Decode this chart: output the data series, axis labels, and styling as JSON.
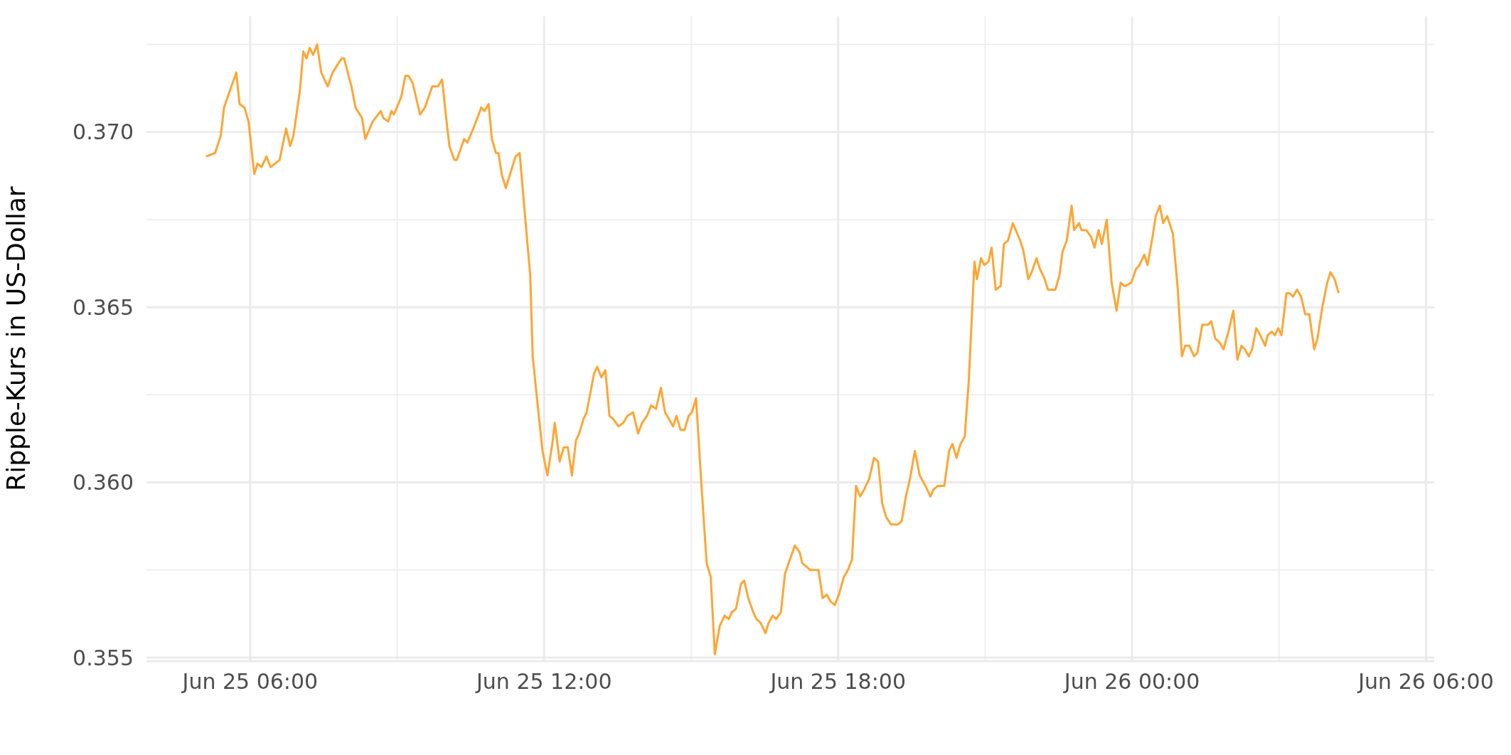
{
  "chart_data": {
    "type": "line",
    "ylabel": "Ripple-Kurs in US-Dollar",
    "x": [
      "--06-25T05:06",
      "--06-25T05:17",
      "--06-25T05:24",
      "--06-25T05:28",
      "--06-25T05:37",
      "--06-25T05:43",
      "--06-25T05:47",
      "--06-25T05:53",
      "--06-25T05:58",
      "--06-25T06:05",
      "--06-25T06:09",
      "--06-25T06:14",
      "--06-25T06:20",
      "--06-25T06:25",
      "--06-25T06:36",
      "--06-25T06:44",
      "--06-25T06:49",
      "--06-25T06:53",
      "--06-25T07:01",
      "--06-25T07:05",
      "--06-25T07:09",
      "--06-25T07:13",
      "--06-25T07:17",
      "--06-25T07:22",
      "--06-25T07:27",
      "--06-25T07:35",
      "--06-25T07:41",
      "--06-25T07:52",
      "--06-25T07:55",
      "--06-25T08:04",
      "--06-25T08:09",
      "--06-25T08:17",
      "--06-25T08:21",
      "--06-25T08:30",
      "--06-25T08:40",
      "--06-25T08:43",
      "--06-25T08:49",
      "--06-25T08:53",
      "--06-25T08:56",
      "--06-25T09:05",
      "--06-25T09:10",
      "--06-25T09:14",
      "--06-25T09:19",
      "--06-25T09:28",
      "--06-25T09:34",
      "--06-25T09:43",
      "--06-25T09:50",
      "--06-25T09:55",
      "--06-25T10:01",
      "--06-25T10:04",
      "--06-25T10:10",
      "--06-25T10:13",
      "--06-25T10:22",
      "--06-25T10:26",
      "--06-25T10:35",
      "--06-25T10:43",
      "--06-25T10:47",
      "--06-25T10:52",
      "--06-25T10:56",
      "--06-25T11:01",
      "--06-25T11:04",
      "--06-25T11:08",
      "--06-25T11:13",
      "--06-25T11:17",
      "--06-25T11:25",
      "--06-25T11:30",
      "--06-25T11:37",
      "--06-25T11:43",
      "--06-25T11:46",
      "--06-25T11:53",
      "--06-25T11:58",
      "--06-25T12:04",
      "--06-25T12:10",
      "--06-25T12:13",
      "--06-25T12:19",
      "--06-25T12:24",
      "--06-25T12:29",
      "--06-25T12:34",
      "--06-25T12:39",
      "--06-25T12:43",
      "--06-25T12:48",
      "--06-25T12:52",
      "--06-25T12:57",
      "--06-25T13:01",
      "--06-25T13:05",
      "--06-25T13:10",
      "--06-25T13:15",
      "--06-25T13:20",
      "--06-25T13:25",
      "--06-25T13:31",
      "--06-25T13:37",
      "--06-25T13:42",
      "--06-25T13:49",
      "--06-25T13:55",
      "--06-25T14:00",
      "--06-25T14:06",
      "--06-25T14:11",
      "--06-25T14:17",
      "--06-25T14:23",
      "--06-25T14:28",
      "--06-25T14:38",
      "--06-25T14:42",
      "--06-25T14:47",
      "--06-25T14:52",
      "--06-25T14:57",
      "--06-25T15:01",
      "--06-25T15:06",
      "--06-25T15:13",
      "--06-25T15:19",
      "--06-25T15:24",
      "--06-25T15:29",
      "--06-25T15:35",
      "--06-25T15:41",
      "--06-25T15:46",
      "--06-25T15:50",
      "--06-25T15:55",
      "--06-25T16:01",
      "--06-25T16:05",
      "--06-25T16:10",
      "--06-25T16:16",
      "--06-25T16:20",
      "--06-25T16:25",
      "--06-25T16:31",
      "--06-25T16:35",
      "--06-25T16:40",
      "--06-25T16:44",
      "--06-25T16:50",
      "--06-25T16:55",
      "--06-25T17:01",
      "--06-25T17:07",
      "--06-25T17:13",
      "--06-25T17:16",
      "--06-25T17:26",
      "--06-25T17:32",
      "--06-25T17:36",
      "--06-25T17:41",
      "--06-25T17:46",
      "--06-25T17:51",
      "--06-25T17:56",
      "--06-25T18:01",
      "--06-25T18:07",
      "--06-25T18:12",
      "--06-25T18:17",
      "--06-25T18:22",
      "--06-25T18:27",
      "--06-25T18:32",
      "--06-25T18:38",
      "--06-25T18:44",
      "--06-25T18:49",
      "--06-25T18:54",
      "--06-25T18:59",
      "--06-25T19:05",
      "--06-25T19:13",
      "--06-25T19:18",
      "--06-25T19:23",
      "--06-25T19:28",
      "--06-25T19:34",
      "--06-25T19:40",
      "--06-25T19:47",
      "--06-25T19:53",
      "--06-25T19:57",
      "--06-25T20:02",
      "--06-25T20:10",
      "--06-25T20:16",
      "--06-25T20:20",
      "--06-25T20:25",
      "--06-25T20:30",
      "--06-25T20:35",
      "--06-25T20:40",
      "--06-25T20:47",
      "--06-25T20:50",
      "--06-25T20:55",
      "--06-25T20:59",
      "--06-25T21:04",
      "--06-25T21:08",
      "--06-25T21:13",
      "--06-25T21:19",
      "--06-25T21:23",
      "--06-25T21:28",
      "--06-25T21:34",
      "--06-25T21:43",
      "--06-25T21:47",
      "--06-25T21:53",
      "--06-25T21:57",
      "--06-25T22:03",
      "--06-25T22:07",
      "--06-25T22:13",
      "--06-25T22:17",
      "--06-25T22:22",
      "--06-25T22:26",
      "--06-25T22:31",
      "--06-25T22:35",
      "--06-25T22:40",
      "--06-25T22:46",
      "--06-25T22:49",
      "--06-25T22:55",
      "--06-25T22:58",
      "--06-25T23:04",
      "--06-25T23:10",
      "--06-25T23:14",
      "--06-25T23:19",
      "--06-25T23:23",
      "--06-25T23:29",
      "--06-25T23:35",
      "--06-25T23:41",
      "--06-25T23:46",
      "--06-25T23:51",
      "--06-25T23:59",
      "--06-26T00:05",
      "--06-26T00:09",
      "--06-26T00:15",
      "--06-26T00:19",
      "--06-26T00:25",
      "--06-26T00:29",
      "--06-26T00:34",
      "--06-26T00:38",
      "--06-26T00:43",
      "--06-26T00:50",
      "--06-26T00:56",
      "--06-26T01:01",
      "--06-26T01:05",
      "--06-26T01:10",
      "--06-26T01:16",
      "--06-26T01:20",
      "--06-26T01:26",
      "--06-26T01:33",
      "--06-26T01:37",
      "--06-26T01:42",
      "--06-26T01:47",
      "--06-26T01:52",
      "--06-26T01:58",
      "--06-26T02:04",
      "--06-26T02:09",
      "--06-26T02:14",
      "--06-26T02:18",
      "--06-26T02:23",
      "--06-26T02:27",
      "--06-26T02:32",
      "--06-26T02:37",
      "--06-26T02:43",
      "--06-26T02:46",
      "--06-26T02:51",
      "--06-26T02:55",
      "--06-26T02:59",
      "--06-26T03:03",
      "--06-26T03:09",
      "--06-26T03:13",
      "--06-26T03:17",
      "--06-26T03:22",
      "--06-26T03:27",
      "--06-26T03:32",
      "--06-26T03:37",
      "--06-26T03:43",
      "--06-26T03:47",
      "--06-26T03:53",
      "--06-26T03:59",
      "--06-26T04:03",
      "--06-26T04:08",
      "--06-26T04:13"
    ],
    "series": [
      {
        "color": "#ffa533",
        "values": [
          0.3693,
          0.3694,
          0.3699,
          0.3707,
          0.3713,
          0.3717,
          0.3708,
          0.3707,
          0.3703,
          0.3688,
          0.3691,
          0.369,
          0.3693,
          0.369,
          0.3692,
          0.3701,
          0.3696,
          0.3699,
          0.3712,
          0.3723,
          0.3721,
          0.3724,
          0.3722,
          0.3725,
          0.3717,
          0.3713,
          0.3717,
          0.3721,
          0.3721,
          0.3713,
          0.3707,
          0.3704,
          0.3698,
          0.3703,
          0.3706,
          0.3704,
          0.3703,
          0.3706,
          0.3705,
          0.371,
          0.3716,
          0.3716,
          0.3714,
          0.3705,
          0.3707,
          0.3713,
          0.3713,
          0.3715,
          0.3702,
          0.3696,
          0.3692,
          0.3692,
          0.3698,
          0.3697,
          0.3702,
          0.3707,
          0.3706,
          0.3708,
          0.3698,
          0.3694,
          0.3694,
          0.3688,
          0.3684,
          0.3687,
          0.3693,
          0.3694,
          0.3675,
          0.3659,
          0.3636,
          0.362,
          0.3609,
          0.3602,
          0.3611,
          0.3617,
          0.3606,
          0.361,
          0.361,
          0.3602,
          0.3612,
          0.3614,
          0.3618,
          0.362,
          0.3626,
          0.3631,
          0.3633,
          0.363,
          0.3632,
          0.3619,
          0.3618,
          0.3616,
          0.3617,
          0.3619,
          0.362,
          0.3614,
          0.3617,
          0.3619,
          0.3622,
          0.3621,
          0.3627,
          0.362,
          0.3616,
          0.3619,
          0.3615,
          0.3615,
          0.3619,
          0.362,
          0.3624,
          0.3598,
          0.3577,
          0.3573,
          0.3551,
          0.3559,
          0.3562,
          0.3561,
          0.3563,
          0.3564,
          0.3571,
          0.3572,
          0.3567,
          0.3563,
          0.3561,
          0.356,
          0.3557,
          0.356,
          0.3562,
          0.3561,
          0.3563,
          0.3574,
          0.3578,
          0.3582,
          0.358,
          0.3577,
          0.3575,
          0.3575,
          0.3575,
          0.3567,
          0.3568,
          0.3566,
          0.3565,
          0.3568,
          0.3573,
          0.3575,
          0.3578,
          0.3599,
          0.3596,
          0.3598,
          0.3601,
          0.3607,
          0.3606,
          0.3594,
          0.359,
          0.3588,
          0.3588,
          0.3589,
          0.3596,
          0.3601,
          0.3609,
          0.3602,
          0.3599,
          0.3596,
          0.3598,
          0.3599,
          0.3599,
          0.3609,
          0.3611,
          0.3607,
          0.3611,
          0.3613,
          0.3629,
          0.3663,
          0.3658,
          0.3664,
          0.3662,
          0.3663,
          0.3667,
          0.3655,
          0.3656,
          0.3668,
          0.3669,
          0.3674,
          0.3669,
          0.3666,
          0.3658,
          0.366,
          0.3664,
          0.3661,
          0.3658,
          0.3655,
          0.3655,
          0.3655,
          0.3659,
          0.3666,
          0.3669,
          0.3679,
          0.3672,
          0.3674,
          0.3672,
          0.3672,
          0.367,
          0.3667,
          0.3672,
          0.3668,
          0.3675,
          0.3657,
          0.3649,
          0.3657,
          0.3656,
          0.3657,
          0.3661,
          0.3662,
          0.3665,
          0.3662,
          0.367,
          0.3676,
          0.3679,
          0.3674,
          0.3676,
          0.3671,
          0.3655,
          0.3636,
          0.3639,
          0.3639,
          0.3636,
          0.3637,
          0.3645,
          0.3645,
          0.3646,
          0.3641,
          0.364,
          0.3638,
          0.3643,
          0.3649,
          0.3635,
          0.3639,
          0.3638,
          0.3636,
          0.3638,
          0.3644,
          0.3642,
          0.3639,
          0.3642,
          0.3643,
          0.3642,
          0.3644,
          0.3642,
          0.3654,
          0.3654,
          0.3653,
          0.3655,
          0.3653,
          0.3648,
          0.3648,
          0.3638,
          0.3641,
          0.365,
          0.3657,
          0.366,
          0.3658,
          0.3654
        ]
      }
    ],
    "xlim": [
      "--06-25T03:53",
      "--06-26T06:10"
    ],
    "xticks": [
      {
        "value": "--06-25T06:00",
        "label": "Jun 25 06:00"
      },
      {
        "value": "--06-25T09:00",
        "label": null
      },
      {
        "value": "--06-25T12:00",
        "label": "Jun 25 12:00"
      },
      {
        "value": "--06-25T15:00",
        "label": null
      },
      {
        "value": "--06-25T18:00",
        "label": "Jun 25 18:00"
      },
      {
        "value": "--06-25T21:00",
        "label": null
      },
      {
        "value": "--06-26T00:00",
        "label": "Jun 26 00:00"
      },
      {
        "value": "--06-26T03:00",
        "label": null
      },
      {
        "value": "--06-26T06:00",
        "label": "Jun 26 06:00"
      }
    ],
    "ylim": [
      0.3549,
      0.3733
    ],
    "yticks": [
      {
        "value": 0.355,
        "label": "0.355"
      },
      {
        "value": 0.3575,
        "label": null
      },
      {
        "value": 0.36,
        "label": "0.360"
      },
      {
        "value": 0.3625,
        "label": null
      },
      {
        "value": 0.365,
        "label": "0.365"
      },
      {
        "value": 0.3675,
        "label": null
      },
      {
        "value": 0.37,
        "label": "0.370"
      },
      {
        "value": 0.3725,
        "label": null
      }
    ],
    "grid": true,
    "marker": "none",
    "line_style": "solid"
  }
}
